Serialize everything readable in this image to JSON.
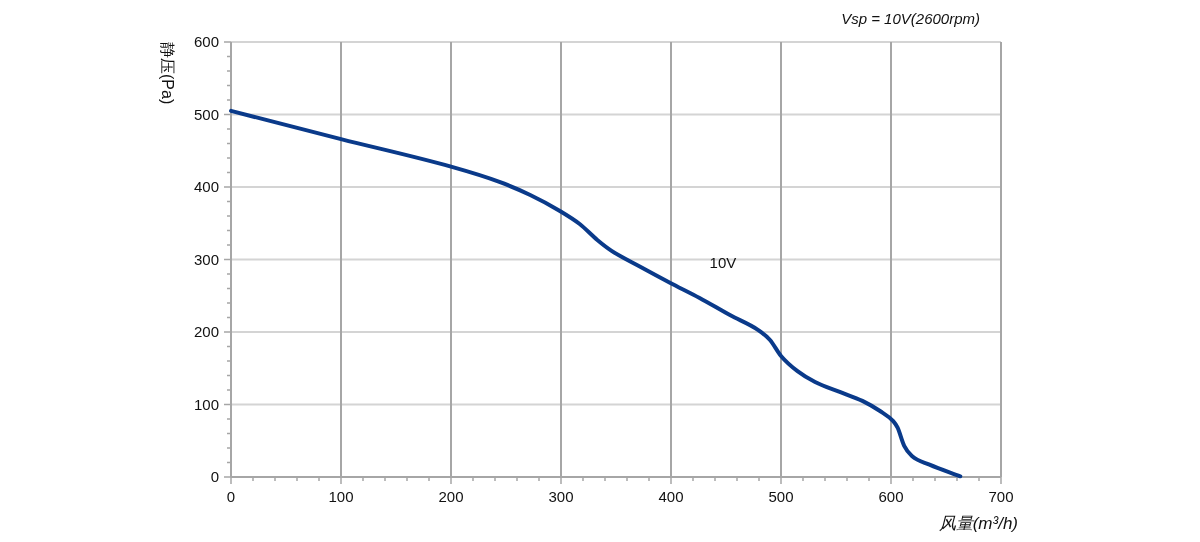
{
  "chart_data": {
    "type": "line",
    "title": "Vsp = 10V(2600rpm)",
    "xlabel": "风量(m³/h)",
    "ylabel": "静压(Pa)",
    "xlim": [
      0,
      700
    ],
    "ylim": [
      0,
      600
    ],
    "xticks": [
      0,
      {
        "value": 20,
        "label": null
      },
      {
        "value": 40,
        "label": null
      },
      {
        "value": 60,
        "label": null
      },
      {
        "value": 80,
        "label": null
      },
      100,
      {
        "value": 120,
        "label": null
      },
      {
        "value": 140,
        "label": null
      },
      {
        "value": 160,
        "label": null
      },
      {
        "value": 180,
        "label": null
      },
      200,
      {
        "value": 220,
        "label": null
      },
      {
        "value": 240,
        "label": null
      },
      {
        "value": 260,
        "label": null
      },
      {
        "value": 280,
        "label": null
      },
      300,
      {
        "value": 320,
        "label": null
      },
      {
        "value": 340,
        "label": null
      },
      {
        "value": 360,
        "label": null
      },
      {
        "value": 380,
        "label": null
      },
      400,
      {
        "value": 420,
        "label": null
      },
      {
        "value": 440,
        "label": null
      },
      {
        "value": 460,
        "label": null
      },
      {
        "value": 480,
        "label": null
      },
      500,
      {
        "value": 520,
        "label": null
      },
      {
        "value": 540,
        "label": null
      },
      {
        "value": 560,
        "label": null
      },
      {
        "value": 580,
        "label": null
      },
      600,
      {
        "value": 620,
        "label": null
      },
      {
        "value": 640,
        "label": null
      },
      {
        "value": 660,
        "label": null
      },
      {
        "value": 680,
        "label": null
      },
      700
    ],
    "yticks": [
      0,
      {
        "value": 20,
        "label": null
      },
      {
        "value": 40,
        "label": null
      },
      {
        "value": 60,
        "label": null
      },
      {
        "value": 80,
        "label": null
      },
      100,
      {
        "value": 120,
        "label": null
      },
      {
        "value": 140,
        "label": null
      },
      {
        "value": 160,
        "label": null
      },
      {
        "value": 180,
        "label": null
      },
      200,
      {
        "value": 220,
        "label": null
      },
      {
        "value": 240,
        "label": null
      },
      {
        "value": 260,
        "label": null
      },
      {
        "value": 280,
        "label": null
      },
      300,
      {
        "value": 320,
        "label": null
      },
      {
        "value": 340,
        "label": null
      },
      {
        "value": 360,
        "label": null
      },
      {
        "value": 380,
        "label": null
      },
      400,
      {
        "value": 420,
        "label": null
      },
      {
        "value": 440,
        "label": null
      },
      {
        "value": 460,
        "label": null
      },
      {
        "value": 480,
        "label": null
      },
      500,
      {
        "value": 520,
        "label": null
      },
      {
        "value": 540,
        "label": null
      },
      {
        "value": 560,
        "label": null
      },
      {
        "value": 580,
        "label": null
      },
      600
    ],
    "grid": true,
    "legend": false,
    "marker": "none",
    "line_style": "solid",
    "series": [
      {
        "name": "10V",
        "color": "#0a3a8a",
        "x": [
          0,
          100,
          200,
          244,
          272,
          299,
          317,
          333,
          346,
          372,
          399,
          426,
          454,
          479,
          490,
          500,
          515,
          531,
          554,
          574,
          590,
          602,
          606,
          612,
          619,
          635,
          663
        ],
        "values": [
          505,
          466,
          428,
          407,
          389,
          367,
          349,
          327,
          312,
          290,
          268,
          247,
          223,
          203,
          189,
          167,
          146,
          131,
          117,
          105,
          91,
          77,
          68,
          43,
          29,
          17,
          1
        ]
      }
    ]
  }
}
